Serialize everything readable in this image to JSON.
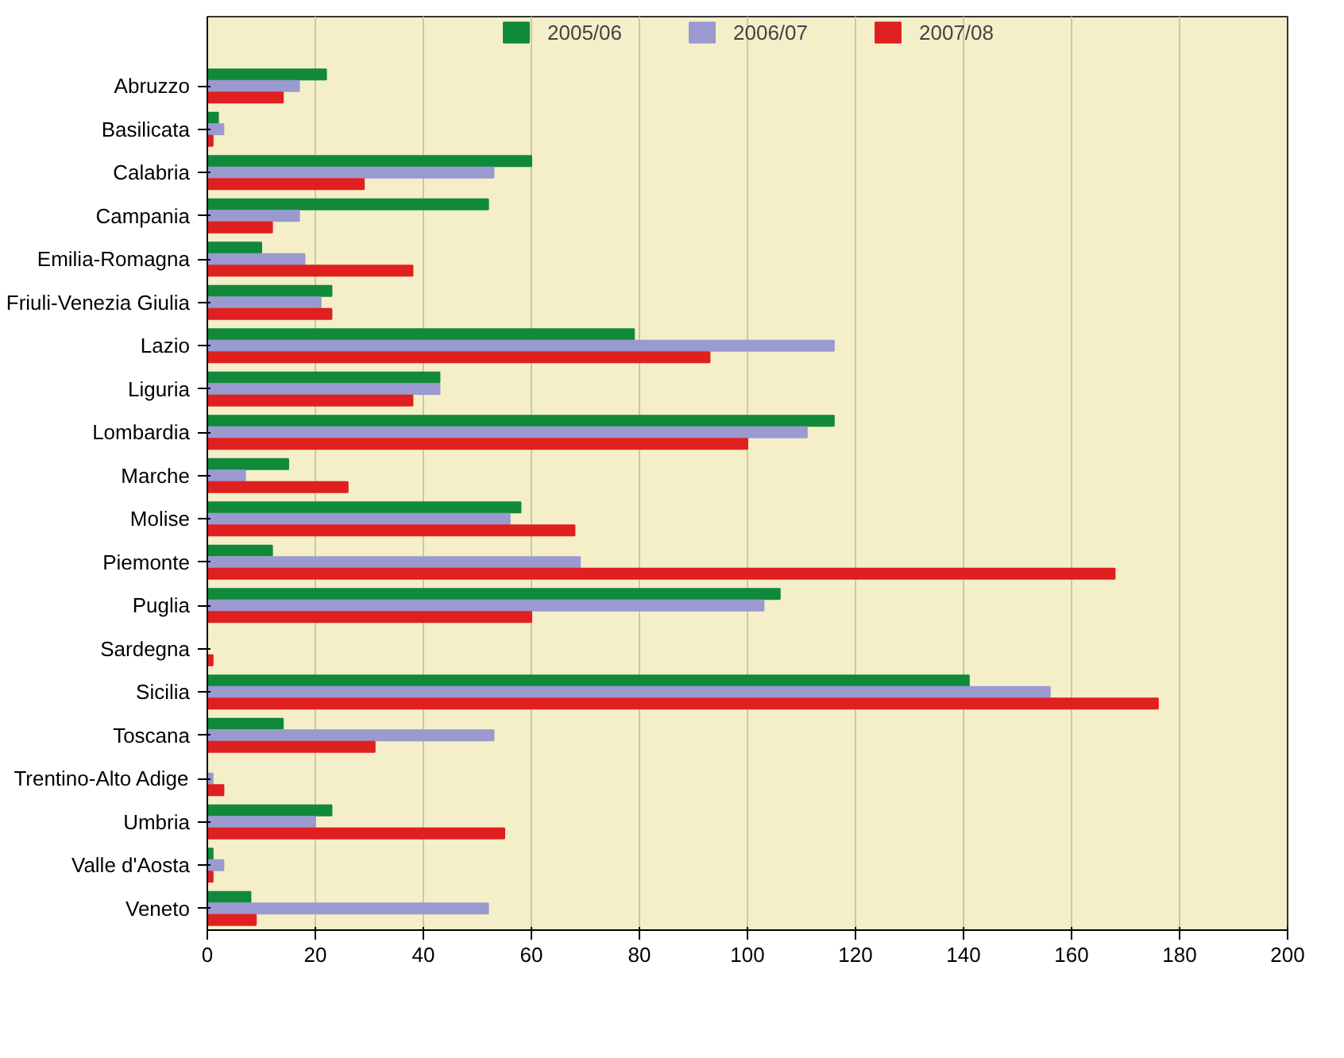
{
  "chart_data": {
    "type": "bar",
    "orientation": "horizontal",
    "categories": [
      "Abruzzo",
      "Basilicata",
      "Calabria",
      "Campania",
      "Emilia-Romagna",
      "Friuli-Venezia Giulia",
      "Lazio",
      "Liguria",
      "Lombardia",
      "Marche",
      "Molise",
      "Piemonte",
      "Puglia",
      "Sardegna",
      "Sicilia",
      "Toscana",
      "Trentino-Alto Adige",
      "Umbria",
      "Valle d'Aosta",
      "Veneto"
    ],
    "series": [
      {
        "name": "2005/06",
        "color": "#108a3a",
        "values": [
          22,
          2,
          60,
          52,
          10,
          23,
          79,
          43,
          116,
          15,
          58,
          12,
          106,
          0,
          141,
          14,
          0,
          23,
          1,
          8
        ]
      },
      {
        "name": "2006/07",
        "color": "#9a9ad0",
        "values": [
          17,
          3,
          53,
          17,
          18,
          21,
          116,
          43,
          111,
          7,
          56,
          69,
          103,
          0,
          156,
          53,
          1,
          20,
          3,
          52
        ]
      },
      {
        "name": "2007/08",
        "color": "#e02020",
        "values": [
          14,
          1,
          29,
          12,
          38,
          23,
          93,
          38,
          100,
          26,
          68,
          168,
          60,
          1,
          176,
          31,
          3,
          55,
          1,
          9
        ]
      }
    ],
    "xlim": [
      0,
      200
    ],
    "xticks": [
      0,
      20,
      40,
      60,
      80,
      100,
      120,
      140,
      160,
      180,
      200
    ],
    "grid": "x",
    "legend": "top"
  }
}
